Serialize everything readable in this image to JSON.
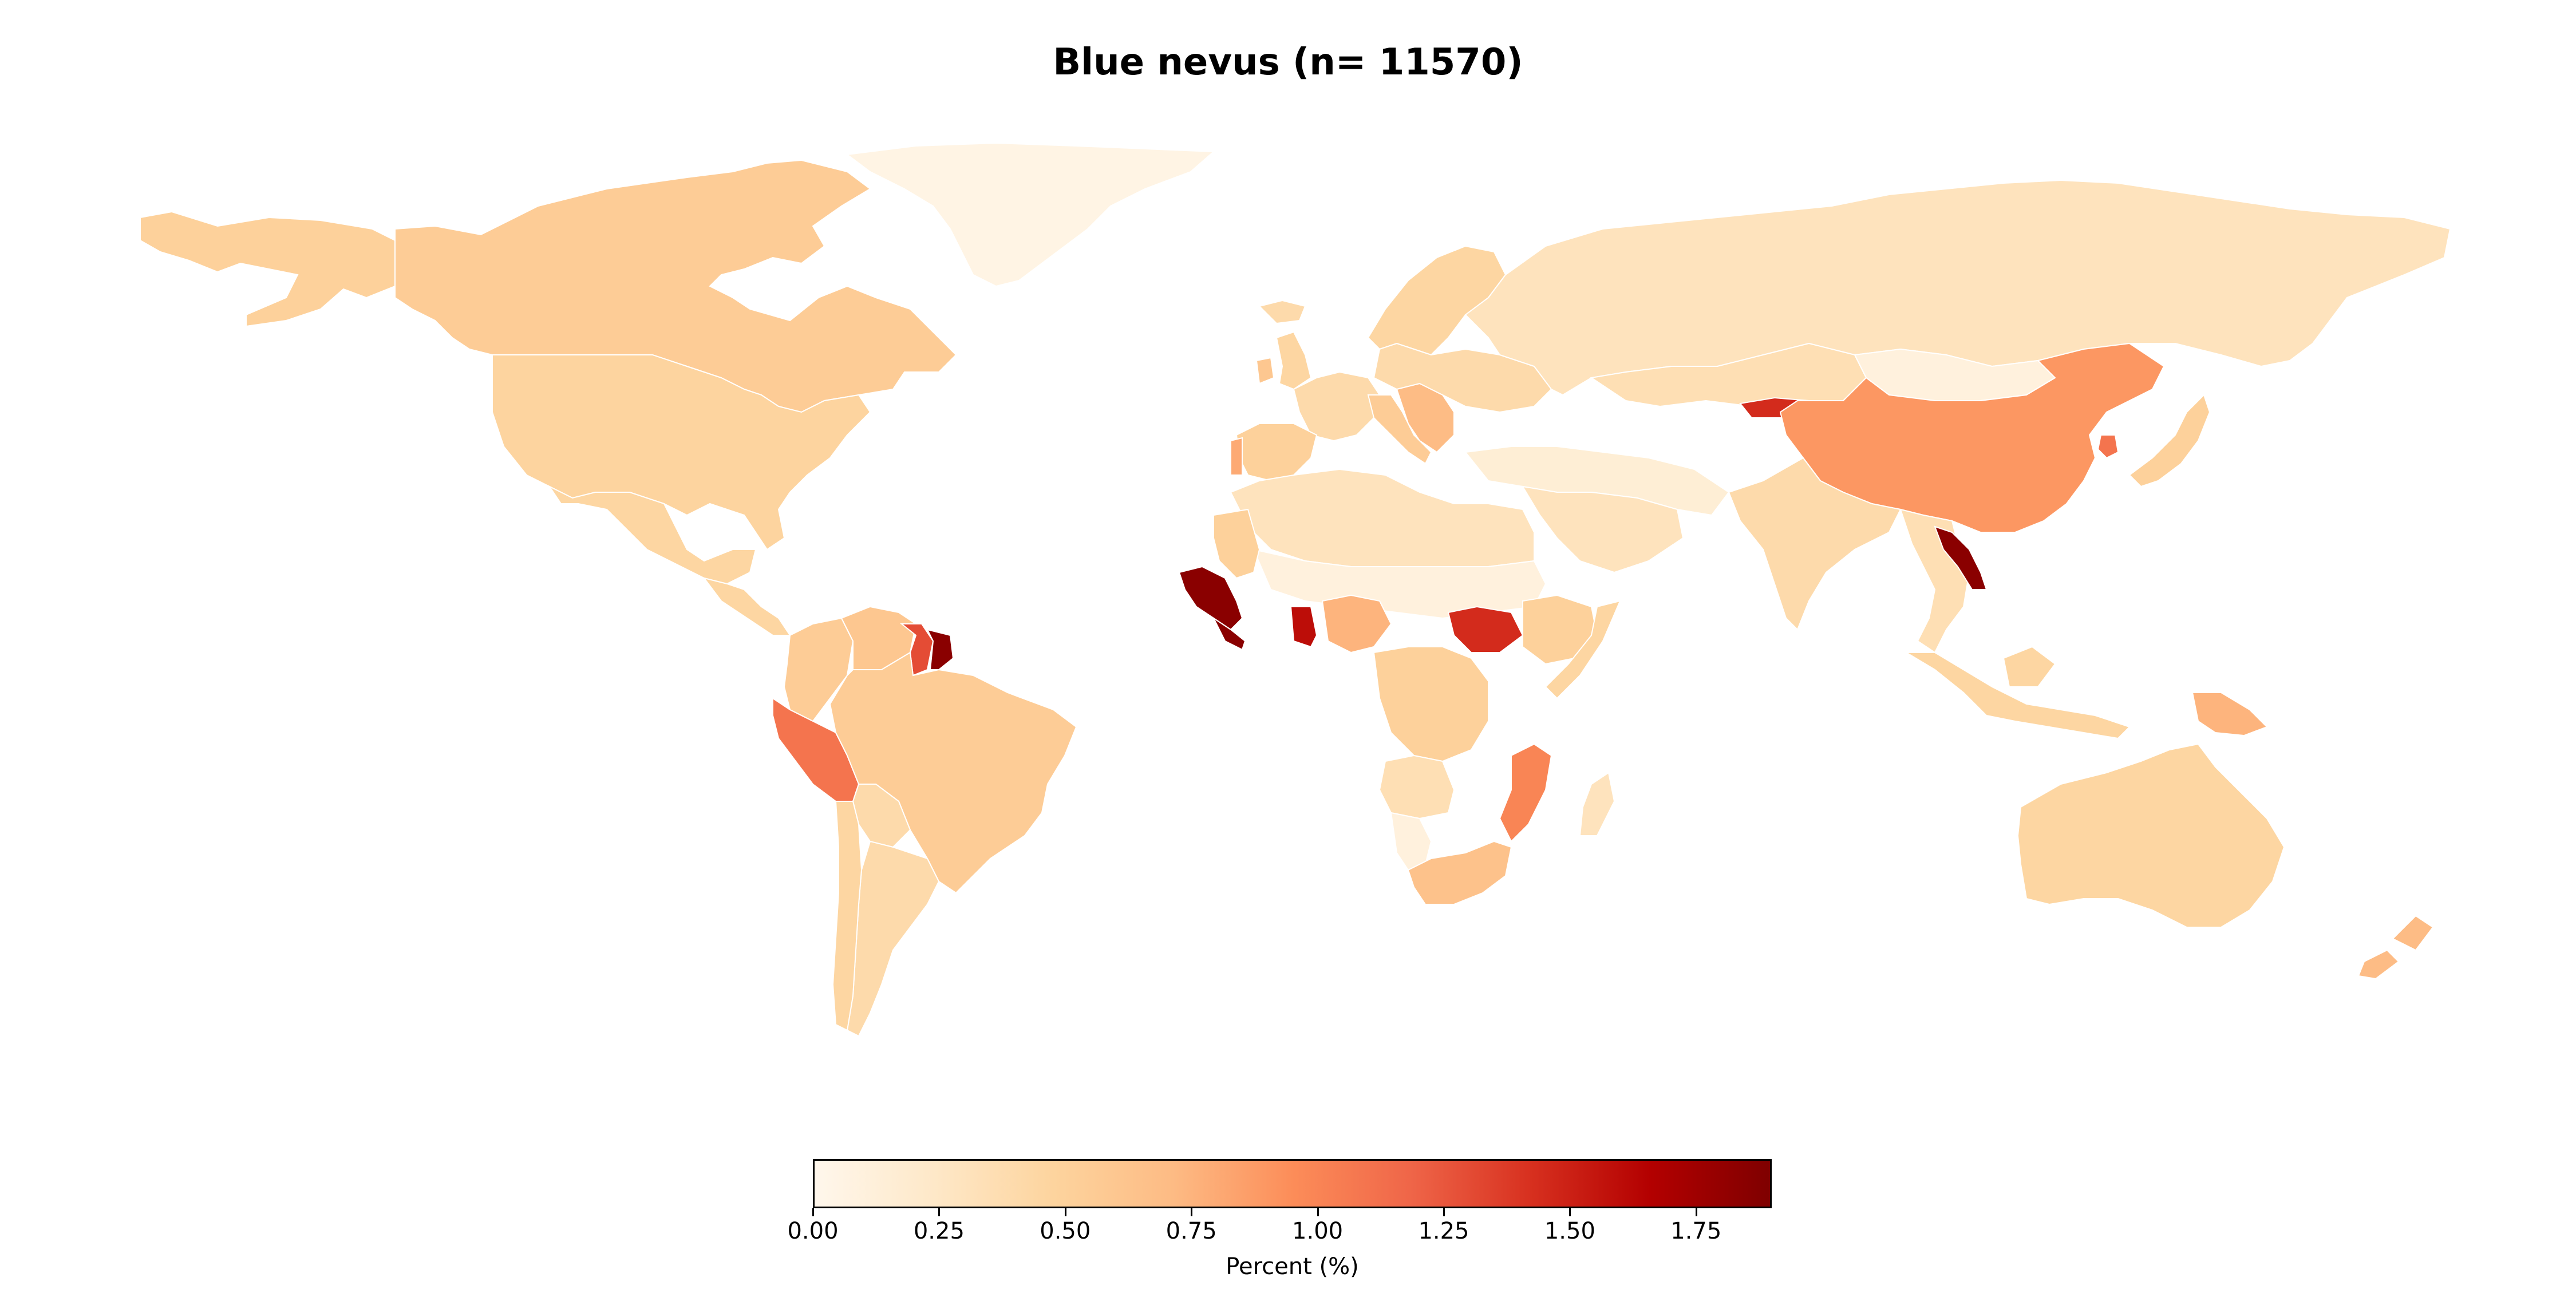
{
  "chart_data": {
    "type": "choropleth",
    "title": "Blue nevus (n= 11570)",
    "colormap": "OrRd",
    "colorbar": {
      "label": "Percent (%)",
      "range": [
        0.0,
        1.9
      ],
      "ticks": [
        "0.00",
        "0.25",
        "0.50",
        "0.75",
        "1.00",
        "1.25",
        "1.50",
        "1.75"
      ],
      "colors": [
        "#fff7ec",
        "#fee8c8",
        "#fdd49e",
        "#fdbb84",
        "#fc8d59",
        "#ef6548",
        "#d7301f",
        "#b30000",
        "#7f0000"
      ]
    },
    "regions": [
      {
        "name": "Alaska",
        "value": 0.5
      },
      {
        "name": "Canada",
        "value": 0.55
      },
      {
        "name": "United States",
        "value": 0.47
      },
      {
        "name": "Greenland",
        "value": 0.05
      },
      {
        "name": "Mexico",
        "value": 0.45
      },
      {
        "name": "Central America",
        "value": 0.45
      },
      {
        "name": "Colombia",
        "value": 0.55
      },
      {
        "name": "Venezuela",
        "value": 0.6
      },
      {
        "name": "Guyana",
        "value": 1.3
      },
      {
        "name": "Suriname",
        "value": 1.85
      },
      {
        "name": "Peru",
        "value": 1.1
      },
      {
        "name": "Brazil",
        "value": 0.55
      },
      {
        "name": "Bolivia",
        "value": 0.4
      },
      {
        "name": "Argentina",
        "value": 0.4
      },
      {
        "name": "Chile",
        "value": 0.45
      },
      {
        "name": "Iceland",
        "value": 0.4
      },
      {
        "name": "Ireland",
        "value": 0.6
      },
      {
        "name": "United Kingdom",
        "value": 0.45
      },
      {
        "name": "Scandinavia",
        "value": 0.45
      },
      {
        "name": "France",
        "value": 0.4
      },
      {
        "name": "Spain",
        "value": 0.5
      },
      {
        "name": "Portugal",
        "value": 0.8
      },
      {
        "name": "Italy",
        "value": 0.55
      },
      {
        "name": "Balkans",
        "value": 0.7
      },
      {
        "name": "Eastern Europe",
        "value": 0.4
      },
      {
        "name": "Russia",
        "value": 0.3
      },
      {
        "name": "Kazakhstan",
        "value": 0.35
      },
      {
        "name": "Kyrgyzstan",
        "value": 1.45
      },
      {
        "name": "Mongolia",
        "value": 0.1
      },
      {
        "name": "China",
        "value": 0.9
      },
      {
        "name": "South Korea",
        "value": 1.1
      },
      {
        "name": "Japan",
        "value": 0.5
      },
      {
        "name": "Middle East",
        "value": 0.15
      },
      {
        "name": "Saudi Arabia",
        "value": 0.3
      },
      {
        "name": "India",
        "value": 0.4
      },
      {
        "name": "Southeast Asia",
        "value": 0.35
      },
      {
        "name": "Laos",
        "value": 1.85
      },
      {
        "name": "Indonesia",
        "value": 0.45
      },
      {
        "name": "Papua New Guinea",
        "value": 0.75
      },
      {
        "name": "Australia",
        "value": 0.45
      },
      {
        "name": "New Zealand",
        "value": 0.7
      },
      {
        "name": "North Africa",
        "value": 0.3
      },
      {
        "name": "Sahel",
        "value": 0.1
      },
      {
        "name": "Mauritania",
        "value": 0.5
      },
      {
        "name": "Guinea",
        "value": 1.85
      },
      {
        "name": "Sierra Leone",
        "value": 1.85
      },
      {
        "name": "Ghana",
        "value": 1.6
      },
      {
        "name": "Nigeria",
        "value": 0.75
      },
      {
        "name": "South Sudan",
        "value": 1.45
      },
      {
        "name": "Ethiopia",
        "value": 0.5
      },
      {
        "name": "Somalia",
        "value": 0.45
      },
      {
        "name": "DR Congo",
        "value": 0.5
      },
      {
        "name": "Angola",
        "value": 0.35
      },
      {
        "name": "Namibia",
        "value": 0.1
      },
      {
        "name": "Mozambique",
        "value": 1.0
      },
      {
        "name": "South Africa",
        "value": 0.65
      },
      {
        "name": "Madagascar",
        "value": 0.3
      }
    ]
  }
}
